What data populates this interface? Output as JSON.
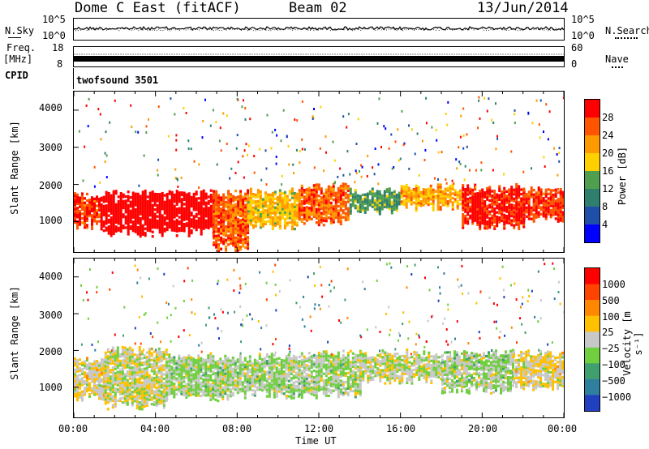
{
  "header": {
    "title": "Dome C East (fitACF)",
    "beam": "Beam 02",
    "date": "13/Jun/2014"
  },
  "nsky": {
    "left_label": "N.Sky",
    "right_label": "N.Search",
    "left_ticks": [
      "10^5",
      "10^0"
    ],
    "right_ticks": [
      "10^5",
      "10^0"
    ]
  },
  "freq": {
    "left_label_1": "Freq.",
    "left_label_2": "[MHz]",
    "left_ticks": [
      "18",
      "8"
    ],
    "right_label": "Nave",
    "right_ticks": [
      "60",
      "0"
    ]
  },
  "cpid": {
    "label": "CPID",
    "value": "twofsound 3501"
  },
  "power_panel": {
    "ylabel": "Slant Range [km]",
    "yticks": [
      "4000",
      "3000",
      "2000",
      "1000"
    ],
    "colorbar_label": "Power [dB]",
    "colorbar_ticks": [
      "28",
      "24",
      "20",
      "16",
      "12",
      "8",
      "4"
    ],
    "colors": [
      "#0000ff",
      "#1f4fa8",
      "#2f7f6f",
      "#4f9f4f",
      "#ffd000",
      "#ff9900",
      "#ff5500",
      "#ff0000"
    ]
  },
  "velocity_panel": {
    "ylabel": "Slant Range [km]",
    "yticks": [
      "4000",
      "3000",
      "2000",
      "1000"
    ],
    "colorbar_label": "Velocity [m s⁻¹]",
    "colorbar_ticks": [
      "1000",
      "500",
      "100",
      "25",
      "−25",
      "−100",
      "−500",
      "−1000"
    ],
    "colors": [
      "#2040c0",
      "#2f7f9f",
      "#3f9f6f",
      "#6fcf3f",
      "#c8c8c8",
      "#ffc000",
      "#ff8800",
      "#ff4400",
      "#ff0000"
    ]
  },
  "xaxis": {
    "label": "Time UT",
    "ticks": [
      "00:00",
      "04:00",
      "08:00",
      "12:00",
      "16:00",
      "20:00",
      "00:00"
    ]
  },
  "chart_data": [
    {
      "type": "heatmap",
      "title": "Power",
      "xlabel": "Time UT",
      "ylabel": "Slant Range [km]",
      "x_range_hours": [
        0,
        24
      ],
      "ylim": [
        180,
        4500
      ],
      "colorbar": "Power [dB]",
      "colorbar_range": [
        0,
        30
      ],
      "bands": [
        {
          "t0": 0.0,
          "t1": 1.3,
          "r_low": 900,
          "r_high": 1700,
          "value": 26
        },
        {
          "t0": 1.3,
          "t1": 6.8,
          "r_low": 700,
          "r_high": 1750,
          "value": 30
        },
        {
          "t0": 6.8,
          "t1": 8.5,
          "r_low": 300,
          "r_high": 1750,
          "value": 24
        },
        {
          "t0": 8.5,
          "t1": 11.0,
          "r_low": 900,
          "r_high": 1800,
          "value": 18
        },
        {
          "t0": 11.0,
          "t1": 13.5,
          "r_low": 1000,
          "r_high": 1900,
          "value": 24
        },
        {
          "t0": 13.5,
          "t1": 16.0,
          "r_low": 1300,
          "r_high": 1800,
          "value": 12
        },
        {
          "t0": 16.0,
          "t1": 19.0,
          "r_low": 1400,
          "r_high": 1900,
          "value": 20
        },
        {
          "t0": 19.0,
          "t1": 22.0,
          "r_low": 900,
          "r_high": 1900,
          "value": 28
        },
        {
          "t0": 22.0,
          "t1": 24.0,
          "r_low": 1100,
          "r_high": 1900,
          "value": 26
        }
      ]
    },
    {
      "type": "heatmap",
      "title": "Velocity",
      "xlabel": "Time UT",
      "ylabel": "Slant Range [km]",
      "x_range_hours": [
        0,
        24
      ],
      "ylim": [
        180,
        4500
      ],
      "colorbar": "Velocity [m s⁻¹]",
      "colorbar_range": [
        -1000,
        1000
      ],
      "bands": [
        {
          "t0": 0.0,
          "t1": 1.5,
          "r_low": 700,
          "r_high": 1700,
          "value": 100
        },
        {
          "t0": 1.5,
          "t1": 4.5,
          "r_low": 500,
          "r_high": 2000,
          "value": 25
        },
        {
          "t0": 4.5,
          "t1": 7.5,
          "r_low": 700,
          "r_high": 1800,
          "value": -100
        },
        {
          "t0": 7.5,
          "t1": 11.0,
          "r_low": 800,
          "r_high": 1800,
          "value": -100
        },
        {
          "t0": 11.0,
          "t1": 14.0,
          "r_low": 800,
          "r_high": 1900,
          "value": -100
        },
        {
          "t0": 14.0,
          "t1": 18.0,
          "r_low": 1200,
          "r_high": 1900,
          "value": -25
        },
        {
          "t0": 18.0,
          "t1": 21.5,
          "r_low": 900,
          "r_high": 1900,
          "value": -100
        },
        {
          "t0": 21.5,
          "t1": 24.0,
          "r_low": 1000,
          "r_high": 1900,
          "value": 100
        }
      ]
    }
  ]
}
